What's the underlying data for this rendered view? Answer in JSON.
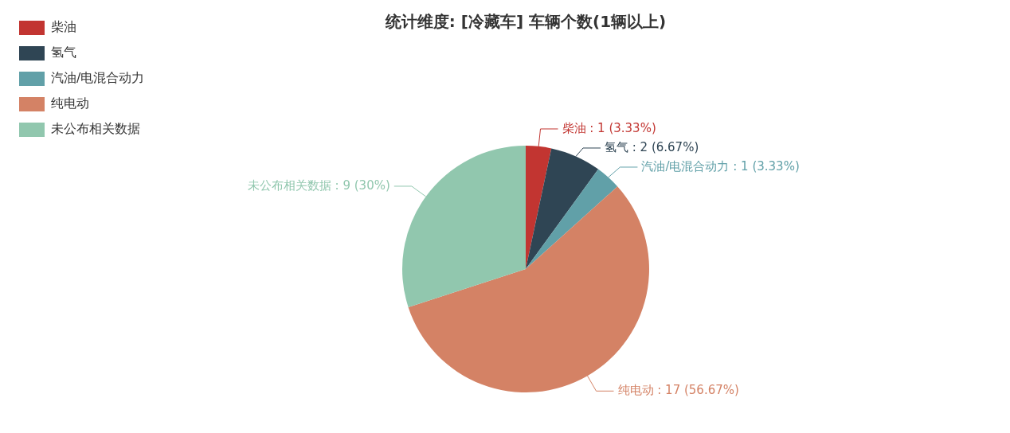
{
  "chart_data": {
    "type": "pie",
    "title": "统计维度: [冷藏车] 车辆个数(1辆以上)",
    "categories": [
      "柴油",
      "氢气",
      "汽油/电混合动力",
      "纯电动",
      "未公布相关数据"
    ],
    "values": [
      1,
      2,
      1,
      17,
      9
    ],
    "value_labels": [
      "柴油 : 1 (3.33%)",
      "氢气 : 2 (6.67%)",
      "汽油/电混合动力 : 1 (3.33%)",
      "纯电动 : 17 (56.67%)",
      "未公布相关数据 : 9 (30%)"
    ],
    "colors": [
      "#c23531",
      "#2f4554",
      "#61a0a8",
      "#d48265",
      "#91c7ae"
    ],
    "legend": "top left"
  }
}
